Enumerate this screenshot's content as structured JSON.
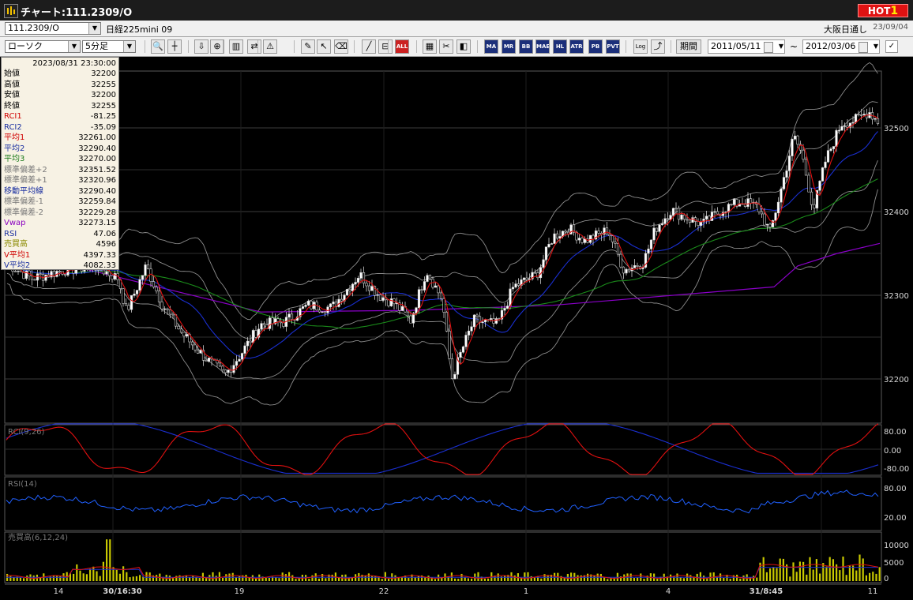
{
  "window": {
    "title": "チャート:111.2309/O",
    "hot_label": "HOT",
    "hot_num": "1"
  },
  "infobar": {
    "symbol": "111.2309/O",
    "name": "日経225mini 09",
    "session": "大阪日通し",
    "date": "23/09/04"
  },
  "toolbar": {
    "chart_type": "ローソク",
    "interval": "5分足",
    "period_label": "期間",
    "date_from": "2011/05/11",
    "date_to": "2012/03/06",
    "tilde": "~",
    "buttons": [
      {
        "name": "zoom-icon",
        "text": "",
        "style": ""
      },
      {
        "name": "crosshair-icon",
        "text": "",
        "style": ""
      },
      {
        "name": "download-icon",
        "text": "",
        "style": ""
      },
      {
        "name": "search-chart-icon",
        "text": "",
        "style": ""
      },
      {
        "name": "compare-icon",
        "text": "",
        "style": ""
      },
      {
        "name": "swap-icon",
        "text": "",
        "style": ""
      },
      {
        "name": "warning-icon",
        "text": "",
        "style": ""
      },
      {
        "name": "pen-icon",
        "text": "",
        "style": ""
      },
      {
        "name": "cursor-icon",
        "text": "",
        "style": ""
      },
      {
        "name": "erase-icon",
        "text": "",
        "style": ""
      },
      {
        "name": "line-icon",
        "text": "",
        "style": ""
      },
      {
        "name": "split-icon",
        "text": "",
        "style": ""
      },
      {
        "name": "all-button",
        "text": "ALL",
        "style": "rd"
      },
      {
        "name": "grid-icon",
        "text": "",
        "style": ""
      },
      {
        "name": "wrench-icon",
        "text": "",
        "style": ""
      },
      {
        "name": "palette-icon",
        "text": "",
        "style": ""
      },
      {
        "name": "indicator-ma",
        "text": "MA",
        "style": "dk"
      },
      {
        "name": "indicator-mr",
        "text": "MR",
        "style": "dk"
      },
      {
        "name": "indicator-bb",
        "text": "BB",
        "style": "dk"
      },
      {
        "name": "indicator-mae",
        "text": "MAE",
        "style": "dk"
      },
      {
        "name": "indicator-hl",
        "text": "HL",
        "style": "dk"
      },
      {
        "name": "indicator-atr",
        "text": "ATR",
        "style": "dk"
      },
      {
        "name": "indicator-pb",
        "text": "PB",
        "style": "dk"
      },
      {
        "name": "indicator-pvt",
        "text": "PVT",
        "style": "dk"
      },
      {
        "name": "log-button",
        "text": "Log",
        "style": ""
      },
      {
        "name": "export-icon",
        "text": "",
        "style": ""
      }
    ]
  },
  "info_panel": {
    "datetime": "2023/08/31 23:30:00",
    "rows": [
      {
        "label": "始値",
        "value": "32200",
        "color": "#000000"
      },
      {
        "label": "高値",
        "value": "32255",
        "color": "#000000"
      },
      {
        "label": "安値",
        "value": "32200",
        "color": "#000000"
      },
      {
        "label": "終値",
        "value": "32255",
        "color": "#000000"
      },
      {
        "label": "RCI1",
        "value": "-81.25",
        "color": "#d00000"
      },
      {
        "label": "RCI2",
        "value": "-35.09",
        "color": "#1a2fa0"
      },
      {
        "label": "平均1",
        "value": "32261.00",
        "color": "#d00000"
      },
      {
        "label": "平均2",
        "value": "32290.40",
        "color": "#1a2fa0"
      },
      {
        "label": "平均3",
        "value": "32270.00",
        "color": "#1a7a1a"
      },
      {
        "label": "標準偏差+2",
        "value": "32351.52",
        "color": "#777777"
      },
      {
        "label": "標準偏差+1",
        "value": "32320.96",
        "color": "#777777"
      },
      {
        "label": "移動平均線",
        "value": "32290.40",
        "color": "#1a2fa0"
      },
      {
        "label": "標準偏差-1",
        "value": "32259.84",
        "color": "#777777"
      },
      {
        "label": "標準偏差-2",
        "value": "32229.28",
        "color": "#777777"
      },
      {
        "label": "Vwap",
        "value": "32273.15",
        "color": "#8a00c0"
      },
      {
        "label": "RSI",
        "value": "47.06",
        "color": "#1a2fa0"
      },
      {
        "label": "売買高",
        "value": "4596",
        "color": "#8a8a00"
      },
      {
        "label": "V平均1",
        "value": "4397.33",
        "color": "#d00000"
      },
      {
        "label": "V平均2",
        "value": "4082.33",
        "color": "#1a2fa0"
      }
    ]
  },
  "price_axis": {
    "ticks": [
      "32500",
      "32400",
      "32300",
      "32200"
    ]
  },
  "rci_panel": {
    "title": "RCI(9,26)",
    "ticks": [
      "80.00",
      "0.00",
      "-80.00"
    ]
  },
  "rsi_panel": {
    "title": "RSI(14)",
    "ticks": [
      "80.00",
      "20.00"
    ]
  },
  "vol_panel": {
    "title": "売買高(6,12,24)",
    "ticks": [
      "10000",
      "5000",
      "0"
    ]
  },
  "time_axis": {
    "labels": [
      "14",
      "30/16:30",
      "19",
      "22",
      "1",
      "4",
      "31/8:45",
      "11"
    ]
  },
  "colors": {
    "candle_up": "#ffffff",
    "candle_down": "#000000",
    "ma1": "#e01010",
    "ma2": "#1a2fd0",
    "ma3": "#1a8a1a",
    "bands": "#8c8c8c",
    "vwap": "#8a00c8",
    "rci1": "#e01010",
    "rci2": "#1a2fd0",
    "rsi": "#2060ff",
    "volume": "#c8c800"
  }
}
